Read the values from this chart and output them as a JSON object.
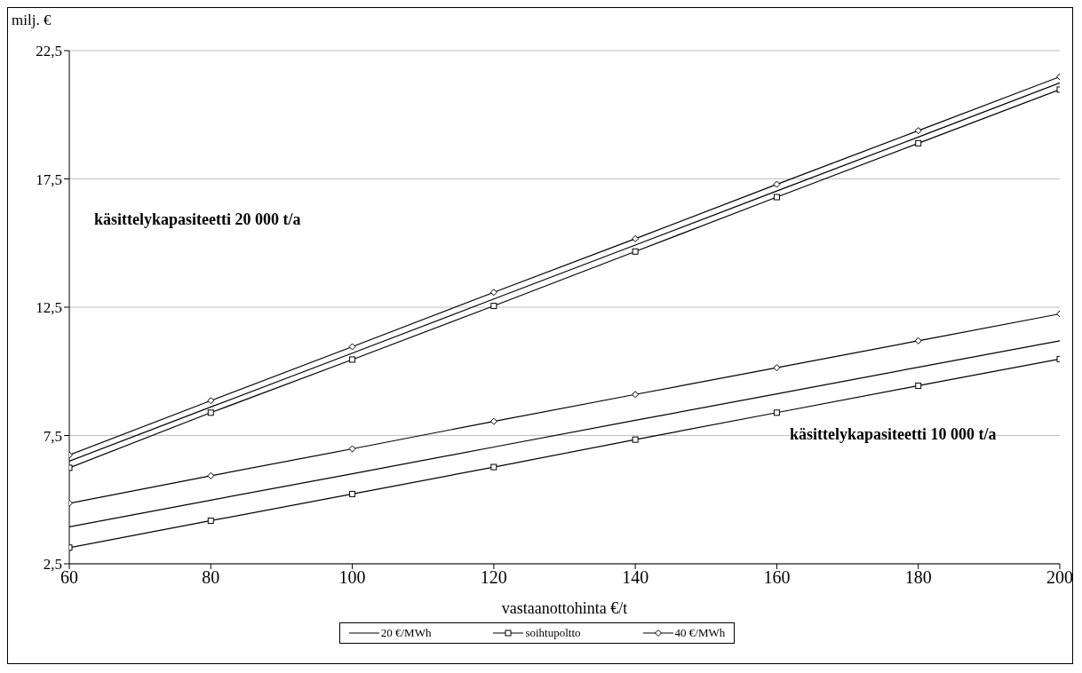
{
  "chart_data": {
    "type": "line",
    "xlabel": "vastaanottohinta €/t",
    "ylabel": "milj. €",
    "annotations": [
      "käsittelykapasiteetti 20 000 t/a",
      "käsittelykapasiteetti 10 000 t/a"
    ],
    "x": [
      60,
      80,
      100,
      120,
      140,
      160,
      180,
      200
    ],
    "series": [
      {
        "name": "20 €/MWh",
        "color": "#000000",
        "marker": "none",
        "values": [
          6.5,
          8.61,
          10.71,
          12.82,
          14.92,
          17.03,
          19.13,
          21.24
        ]
      },
      {
        "name": "soihtupoltto",
        "color": "#000000",
        "marker": "square",
        "values": [
          6.24,
          8.39,
          10.46,
          12.55,
          14.67,
          16.79,
          18.89,
          20.98
        ]
      },
      {
        "name": "40 €/MWh",
        "color": "#000000",
        "marker": "diamond",
        "values": [
          6.74,
          8.86,
          10.96,
          13.08,
          15.17,
          17.29,
          19.38,
          21.48
        ]
      },
      {
        "color": "#000000",
        "marker": "none",
        "values": [
          3.94,
          4.98,
          6.01,
          7.05,
          8.09,
          9.12,
          10.16,
          11.19
        ]
      },
      {
        "color": "#000000",
        "marker": "square",
        "values": [
          3.13,
          4.18,
          5.22,
          6.27,
          7.34,
          8.39,
          9.44,
          10.48
        ]
      },
      {
        "color": "#000000",
        "marker": "diamond",
        "values": [
          4.86,
          5.93,
          6.98,
          8.05,
          9.1,
          10.14,
          11.19,
          12.24
        ]
      }
    ],
    "xlim": [
      60,
      200
    ],
    "xticks": [
      60,
      80,
      100,
      120,
      140,
      160,
      180,
      200
    ],
    "ylim": [
      2.5,
      22.5
    ],
    "yticks": [
      {
        "value": 2.5,
        "label": "2,5"
      },
      {
        "value": 7.5,
        "label": "7,5"
      },
      {
        "value": 12.5,
        "label": "12,5"
      },
      {
        "value": 17.5,
        "label": "17,5"
      },
      {
        "value": 22.5,
        "label": "22,5"
      }
    ],
    "grid": "y",
    "legend": "bottom",
    "line_style": "solid"
  }
}
